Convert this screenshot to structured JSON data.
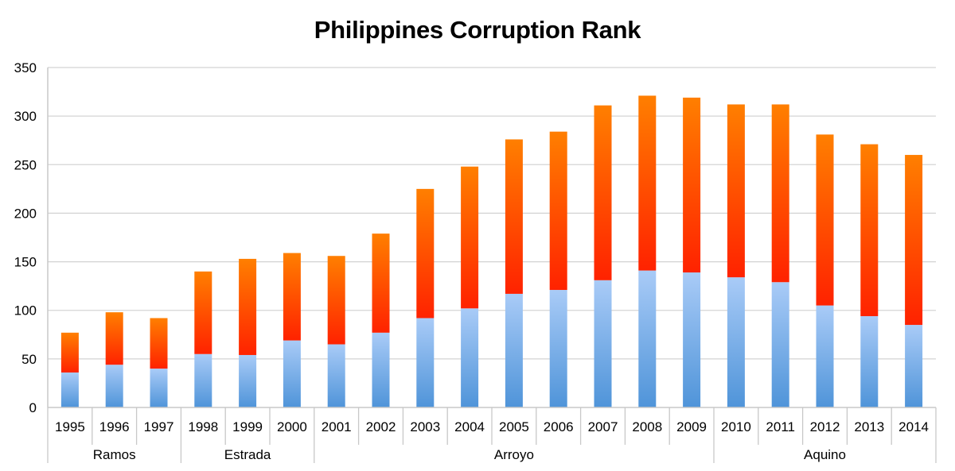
{
  "chart_data": {
    "type": "bar",
    "stacked": true,
    "title": "Philippines Corruption Rank",
    "xlabel": "",
    "ylabel": "",
    "ylim": [
      0,
      350
    ],
    "yticks": [
      0,
      50,
      100,
      150,
      200,
      250,
      300,
      350
    ],
    "grid": true,
    "legend": "none",
    "categories": [
      "1995",
      "1996",
      "1997",
      "1998",
      "1999",
      "2000",
      "2001",
      "2002",
      "2003",
      "2004",
      "2005",
      "2006",
      "2007",
      "2008",
      "2009",
      "2010",
      "2011",
      "2012",
      "2013",
      "2014"
    ],
    "groups": [
      {
        "label": "Ramos",
        "count": 3
      },
      {
        "label": "Estrada",
        "count": 3
      },
      {
        "label": "Arroyo",
        "count": 9
      },
      {
        "label": "Aquino",
        "count": 5
      }
    ],
    "series": [
      {
        "values": [
          36,
          44,
          40,
          55,
          54,
          69,
          65,
          77,
          92,
          102,
          117,
          121,
          131,
          141,
          139,
          134,
          129,
          105,
          94,
          85
        ],
        "color_top": "#a9cbf7",
        "color_bottom": "#4f94d9"
      },
      {
        "values": [
          41,
          54,
          52,
          85,
          99,
          90,
          91,
          102,
          133,
          146,
          159,
          163,
          180,
          180,
          180,
          178,
          183,
          176,
          177,
          175
        ],
        "color_top": "#ff7f00",
        "color_bottom": "#ff2200"
      }
    ]
  }
}
